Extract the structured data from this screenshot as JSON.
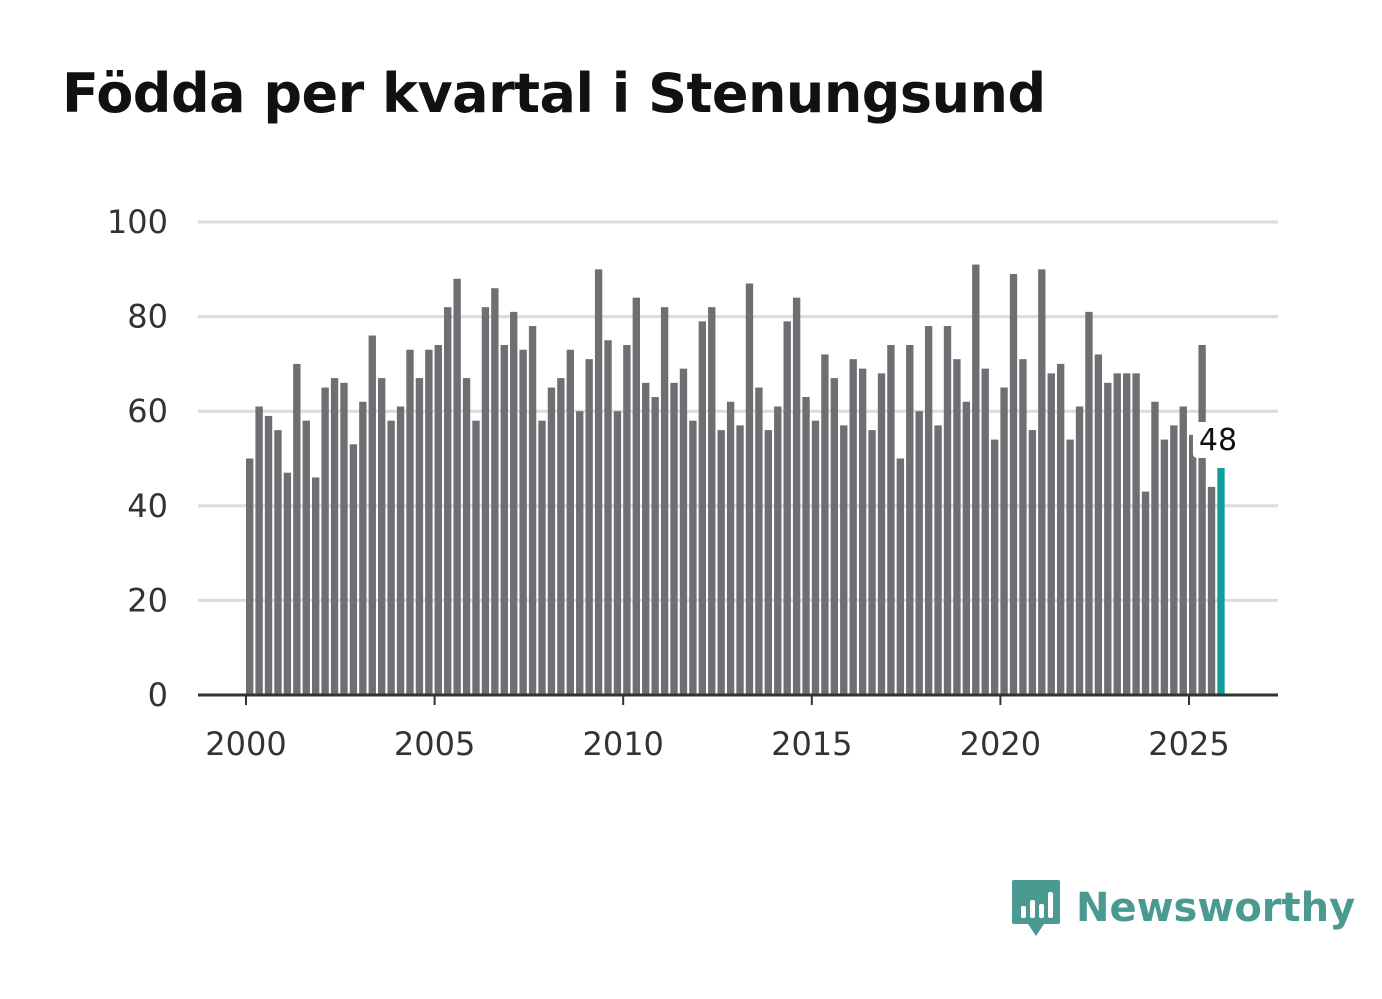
{
  "title": "Födda per kvartal i Stenungsund",
  "brand": {
    "name": "Newsworthy",
    "icon": "newsworthy-logo-icon"
  },
  "colors": {
    "bar": "#6f6e73",
    "highlight": "#0f9e98",
    "grid": "#dcdcdc",
    "axis": "#333333",
    "brand": "#4a9a92"
  },
  "chart_data": {
    "type": "bar",
    "title": "Födda per kvartal i Stenungsund",
    "xlabel": "",
    "ylabel": "",
    "ylim": [
      0,
      100
    ],
    "y_ticks": [
      "0",
      "20",
      "40",
      "60",
      "80",
      "100"
    ],
    "x_ticks": [
      "2000",
      "2005",
      "2010",
      "2015",
      "2020",
      "2025"
    ],
    "x_tick_years": [
      2000,
      2005,
      2010,
      2015,
      2020,
      2025
    ],
    "start_year": 2000,
    "periods_per_year": 4,
    "grid": true,
    "highlight_last": true,
    "last_label": "48",
    "values": [
      50,
      61,
      59,
      56,
      47,
      70,
      58,
      46,
      65,
      67,
      66,
      53,
      62,
      76,
      67,
      58,
      61,
      73,
      67,
      73,
      74,
      82,
      88,
      67,
      58,
      82,
      86,
      74,
      81,
      73,
      78,
      58,
      65,
      67,
      73,
      60,
      71,
      90,
      75,
      60,
      74,
      84,
      66,
      63,
      82,
      66,
      69,
      58,
      79,
      82,
      56,
      62,
      57,
      87,
      65,
      56,
      61,
      79,
      84,
      63,
      58,
      72,
      67,
      57,
      71,
      69,
      56,
      68,
      74,
      50,
      74,
      60,
      78,
      57,
      78,
      71,
      62,
      91,
      69,
      54,
      65,
      89,
      71,
      56,
      90,
      68,
      70,
      54,
      61,
      81,
      72,
      66,
      68,
      68,
      68,
      43,
      62,
      54,
      57,
      61,
      55,
      74,
      44,
      48
    ]
  }
}
